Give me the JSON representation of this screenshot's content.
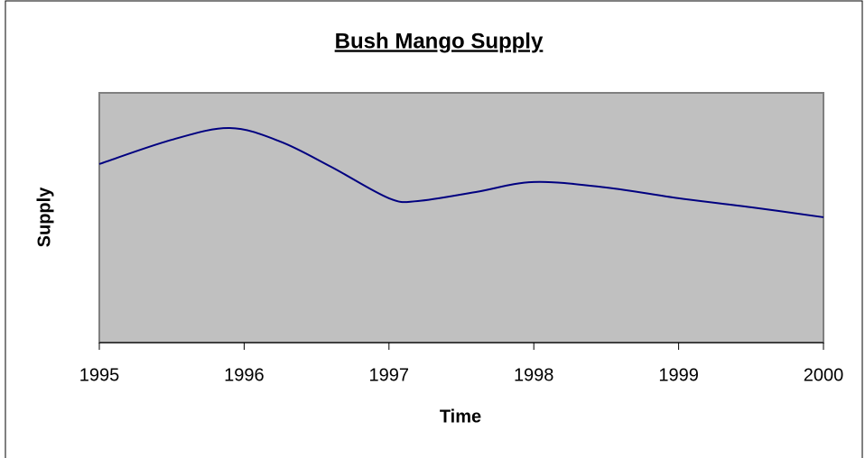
{
  "chart_data": {
    "type": "line",
    "title": "Bush Mango Supply",
    "xlabel": "Time",
    "ylabel": "Supply",
    "series": [
      {
        "name": "Supply",
        "color": "#000080",
        "x": [
          1995,
          1995.5,
          1995.9,
          1996.25,
          1996.6,
          1997,
          1997.2,
          1997.6,
          1998,
          1998.5,
          1999,
          1999.5,
          2000
        ],
        "values": [
          71.5,
          81.2,
          85.9,
          80.5,
          70.4,
          57.8,
          56.7,
          60.3,
          64.3,
          62.1,
          57.8,
          54.2,
          50.2
        ]
      }
    ],
    "xlim": [
      1995,
      2000
    ],
    "xticks": [
      1995,
      1996,
      1997,
      1998,
      1999,
      2000
    ],
    "ylim": [
      0,
      100
    ],
    "plot_background": "#c0c0c0"
  }
}
